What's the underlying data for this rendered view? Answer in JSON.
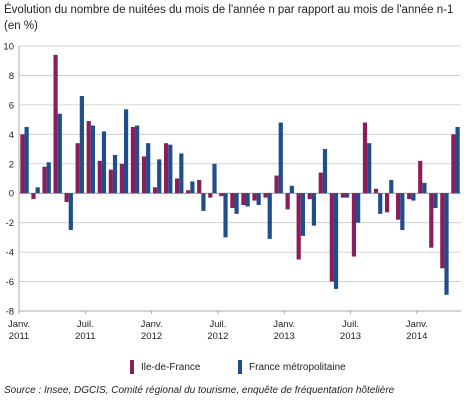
{
  "title": "Évolution du nombre de nuitées du mois de l'année n par rapport au mois de l'année n-1 (en %)",
  "source": "Source : Insee, DGCIS, Comité régional du tourisme, enquête de fréquentation hôtelière",
  "colors": {
    "idf": "#8c1d5c",
    "fm": "#1f4e8c"
  },
  "chart_data": {
    "type": "bar",
    "title": "Évolution du nombre de nuitées du mois de l'année n par rapport au mois de l'année n-1 (en %)",
    "ylim": [
      -8,
      10
    ],
    "yticks": [
      -8,
      -6,
      -4,
      -2,
      0,
      2,
      4,
      6,
      8,
      10
    ],
    "grid": true,
    "legend_position": "bottom",
    "x_tick_labels": [
      {
        "index": 0,
        "line1": "Janv.",
        "line2": "2011"
      },
      {
        "index": 6,
        "line1": "Juil.",
        "line2": "2011"
      },
      {
        "index": 12,
        "line1": "Janv.",
        "line2": "2012"
      },
      {
        "index": 18,
        "line1": "Juil.",
        "line2": "2012"
      },
      {
        "index": 24,
        "line1": "Janv.",
        "line2": "2013"
      },
      {
        "index": 30,
        "line1": "Juil.",
        "line2": "2013"
      },
      {
        "index": 36,
        "line1": "Janv.",
        "line2": "2014"
      }
    ],
    "categories": [
      "2011-01",
      "2011-02",
      "2011-03",
      "2011-04",
      "2011-05",
      "2011-06",
      "2011-07",
      "2011-08",
      "2011-09",
      "2011-10",
      "2011-11",
      "2011-12",
      "2012-01",
      "2012-02",
      "2012-03",
      "2012-04",
      "2012-05",
      "2012-06",
      "2012-07",
      "2012-08",
      "2012-09",
      "2012-10",
      "2012-11",
      "2012-12",
      "2013-01",
      "2013-02",
      "2013-03",
      "2013-04",
      "2013-05",
      "2013-06",
      "2013-07",
      "2013-08",
      "2013-09",
      "2013-10",
      "2013-11",
      "2013-12",
      "2014-01",
      "2014-02",
      "2014-03",
      "2014-04"
    ],
    "series": [
      {
        "name": "Ile-de-France",
        "values": [
          4.0,
          -0.4,
          1.8,
          9.4,
          -0.6,
          3.4,
          4.9,
          2.2,
          1.6,
          2.0,
          4.5,
          2.5,
          0.4,
          3.4,
          1.0,
          0.2,
          0.9,
          -0.3,
          -0.2,
          -1.0,
          -0.8,
          -0.5,
          -0.3,
          1.2,
          -1.1,
          -4.5,
          -0.4,
          1.4,
          -6.0,
          -0.3,
          -4.3,
          4.8,
          0.3,
          -1.3,
          -1.8,
          -0.4,
          2.2,
          -3.7,
          -5.1,
          4.0
        ]
      },
      {
        "name": "France métropolitaine",
        "values": [
          4.5,
          0.4,
          2.1,
          5.4,
          -2.5,
          6.6,
          4.6,
          4.2,
          2.6,
          5.7,
          4.6,
          3.4,
          2.3,
          3.3,
          2.7,
          0.8,
          -1.2,
          2.0,
          -3.0,
          -1.4,
          -0.9,
          -0.8,
          -3.1,
          4.8,
          0.5,
          -2.9,
          -2.2,
          3.0,
          -6.5,
          -0.3,
          -2.0,
          3.4,
          -1.4,
          0.9,
          -2.5,
          -0.5,
          0.7,
          -1.0,
          -6.9,
          4.5
        ]
      }
    ]
  }
}
